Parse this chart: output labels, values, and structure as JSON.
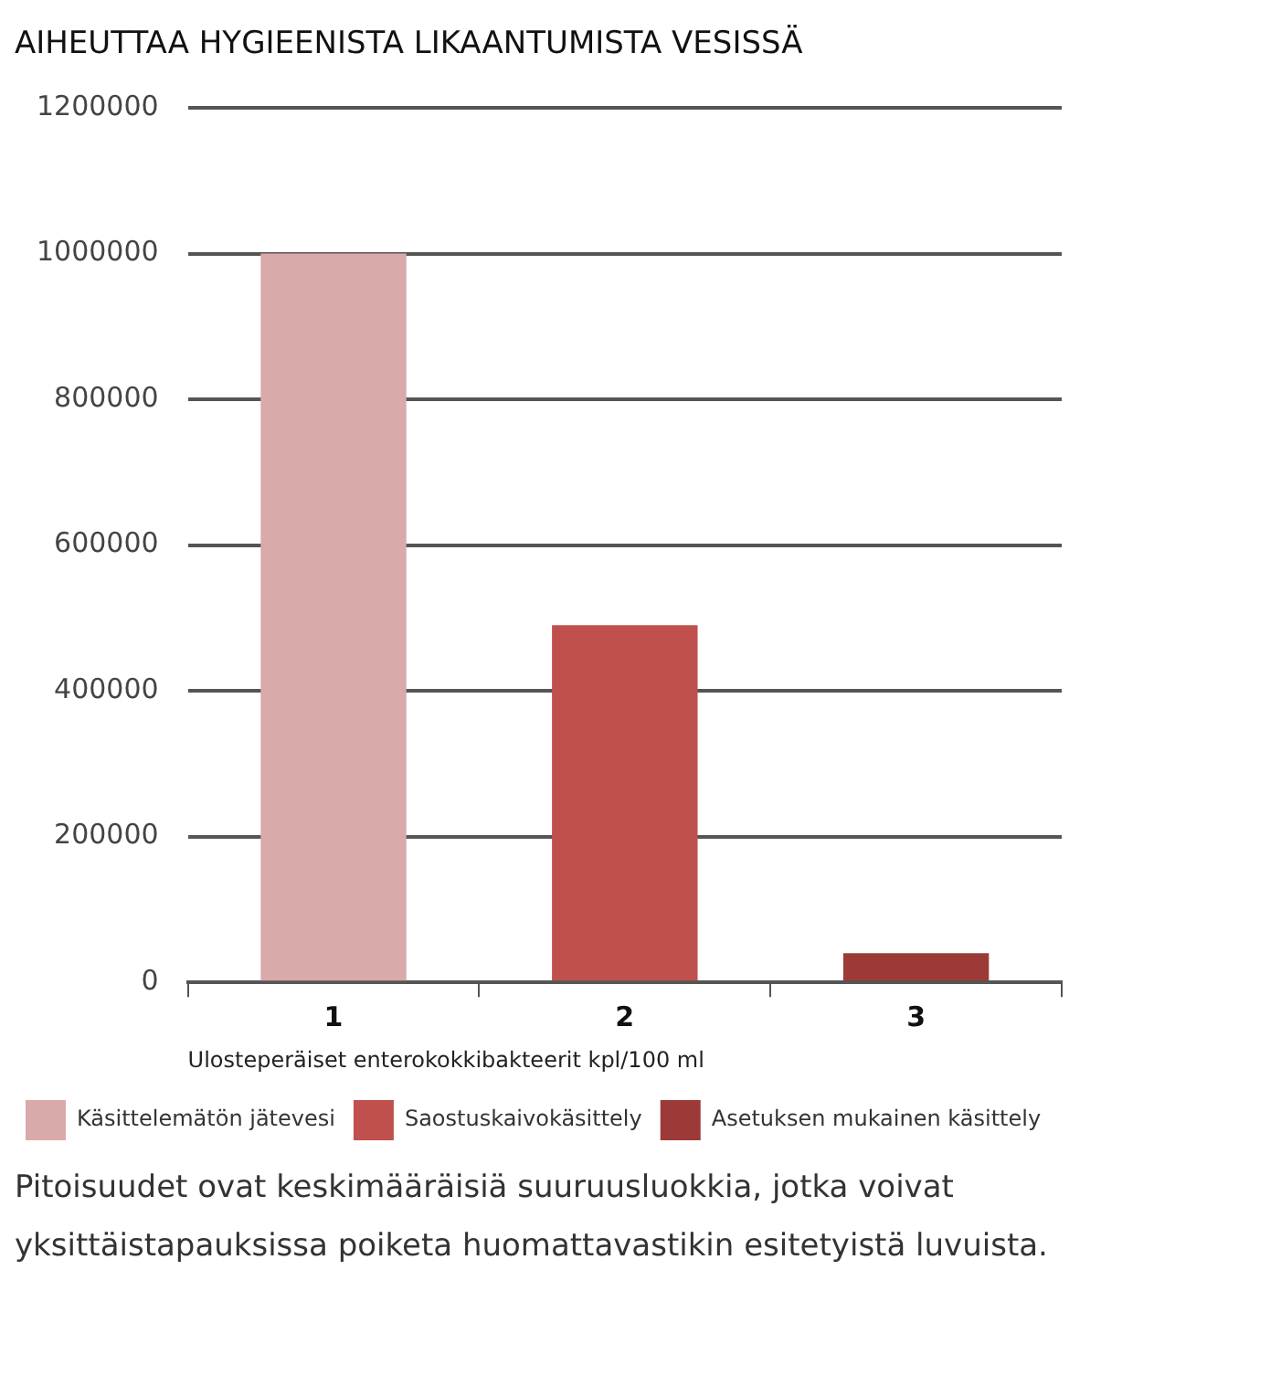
{
  "chart_data": {
    "type": "bar",
    "title": "AIHEUTTAA HYGIEENISTA LIKAANTUMISTA VESISSÄ",
    "xlabel": "Ulosteperäiset enterokokkibakteerit kpl/100 ml",
    "categories": [
      "1",
      "2",
      "3"
    ],
    "series": [
      {
        "name": "Käsittelemätön jätevesi",
        "color": "#d9aaa9",
        "values": [
          1000000,
          null,
          null
        ]
      },
      {
        "name": "Saostuskaivokäsittely",
        "color": "#c0504d",
        "values": [
          null,
          490000,
          null
        ]
      },
      {
        "name": "Asetuksen mukainen käsittely",
        "color": "#9c3a38",
        "values": [
          null,
          null,
          40000
        ]
      }
    ],
    "stacked": true,
    "ylim": [
      0,
      1200000
    ],
    "yticks": [
      0,
      200000,
      400000,
      600000,
      800000,
      1000000,
      1200000
    ],
    "grid": "y",
    "legend": "bottom",
    "annotations": [
      "Pitoisuudet ovat keskimääräisiä suuruusluokkia, jotka voivat yksittäistapauksissa poiketa huomattavastikin esitetyistä luvuista."
    ]
  }
}
